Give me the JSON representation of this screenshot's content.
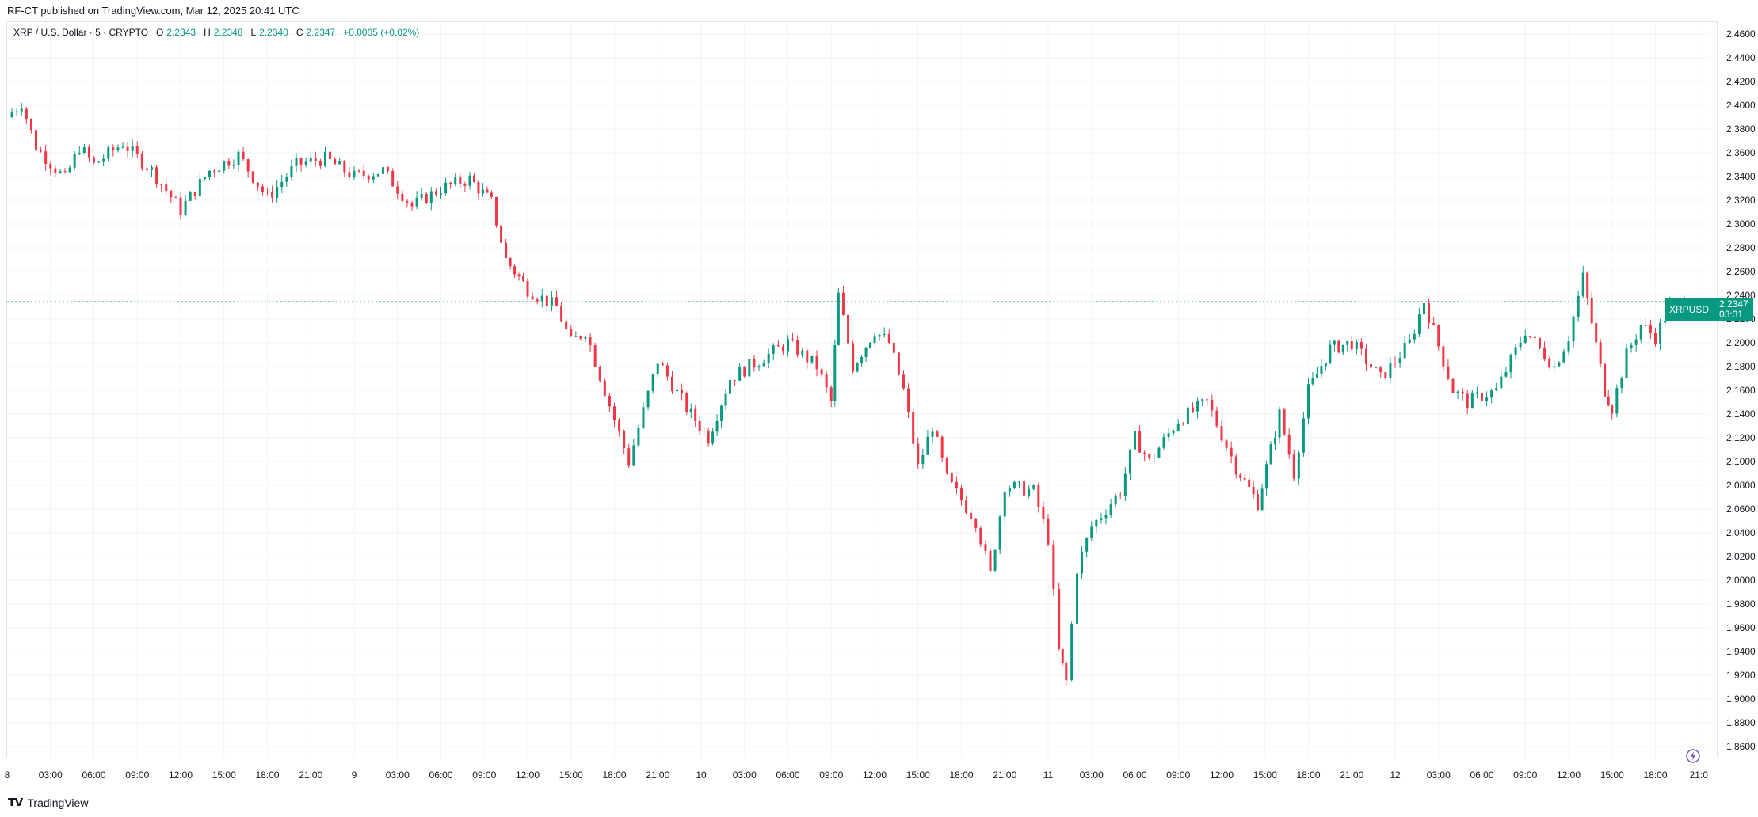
{
  "publisher_line": "RF-CT published on TradingView.com, Mar 12, 2025 20:41 UTC",
  "legend": {
    "symbol": "XRP / U.S. Dollar · 5 · CRYPTO",
    "open_label": "O",
    "open": "2.2343",
    "high_label": "H",
    "high": "2.2348",
    "low_label": "L",
    "low": "2.2340",
    "close_label": "C",
    "close": "2.2347",
    "change": "+0.0005 (+0.02%)"
  },
  "price_badge": {
    "ticker": "XRPUSD",
    "price": "2.2347",
    "countdown": "03:31"
  },
  "footer": {
    "brand": "TradingView"
  },
  "colors": {
    "up": "#089981",
    "down": "#f23645",
    "grid": "#f0f3fa",
    "axis_text": "#131722",
    "last_price_line": "#089981"
  },
  "chart_data": {
    "type": "candlestick",
    "symbol": "XRPUSD",
    "interval": "5",
    "ylim": [
      1.85,
      2.47
    ],
    "y_ticks": [
      "2.4600",
      "2.4400",
      "2.4200",
      "2.4000",
      "2.3800",
      "2.3600",
      "2.3400",
      "2.3200",
      "2.3000",
      "2.2800",
      "2.2600",
      "2.2400",
      "2.2200",
      "2.2000",
      "2.1800",
      "2.1600",
      "2.1400",
      "2.1200",
      "2.1000",
      "2.0800",
      "2.0600",
      "2.0400",
      "2.0200",
      "2.0000",
      "1.9800",
      "1.9600",
      "1.9400",
      "1.9200",
      "1.9000",
      "1.8800",
      "1.8600"
    ],
    "x_ticks": [
      "03:00",
      "06:00",
      "09:00",
      "12:00",
      "15:00",
      "18:00",
      "21:00",
      "9",
      "03:00",
      "06:00",
      "09:00",
      "12:00",
      "15:00",
      "18:00",
      "21:00",
      "10",
      "03:00",
      "06:00",
      "09:00",
      "12:00",
      "15:00",
      "18:00",
      "21:00",
      "11",
      "03:00",
      "06:00",
      "09:00",
      "12:00",
      "15:00",
      "18:00",
      "21:00",
      "12",
      "03:00",
      "06:00",
      "09:00",
      "12:00",
      "15:00",
      "18:00",
      "21:0"
    ],
    "x_edge_label_left": "8",
    "last_price": 2.2347,
    "price_path": [
      {
        "t": "Mar 8 00:00",
        "p": 2.39
      },
      {
        "t": "Mar 8 01:00",
        "p": 2.402
      },
      {
        "t": "Mar 8 02:00",
        "p": 2.365
      },
      {
        "t": "Mar 8 04:00",
        "p": 2.338
      },
      {
        "t": "Mar 8 05:00",
        "p": 2.365
      },
      {
        "t": "Mar 8 06:00",
        "p": 2.35
      },
      {
        "t": "Mar 8 08:00",
        "p": 2.368
      },
      {
        "t": "Mar 8 10:00",
        "p": 2.345
      },
      {
        "t": "Mar 8 12:00",
        "p": 2.312
      },
      {
        "t": "Mar 8 14:00",
        "p": 2.345
      },
      {
        "t": "Mar 8 16:00",
        "p": 2.358
      },
      {
        "t": "Mar 8 18:00",
        "p": 2.322
      },
      {
        "t": "Mar 8 20:00",
        "p": 2.35
      },
      {
        "t": "Mar 8 22:00",
        "p": 2.355
      },
      {
        "t": "Mar 9 00:00",
        "p": 2.34
      },
      {
        "t": "Mar 9 02:00",
        "p": 2.345
      },
      {
        "t": "Mar 9 04:00",
        "p": 2.315
      },
      {
        "t": "Mar 9 06:00",
        "p": 2.33
      },
      {
        "t": "Mar 9 08:00",
        "p": 2.338
      },
      {
        "t": "Mar 9 09:30",
        "p": 2.318
      },
      {
        "t": "Mar 9 10:30",
        "p": 2.27
      },
      {
        "t": "Mar 9 12:00",
        "p": 2.245
      },
      {
        "t": "Mar 9 14:00",
        "p": 2.23
      },
      {
        "t": "Mar 9 15:00",
        "p": 2.2
      },
      {
        "t": "Mar 9 16:00",
        "p": 2.21
      },
      {
        "t": "Mar 9 18:00",
        "p": 2.135
      },
      {
        "t": "Mar 9 19:00",
        "p": 2.1
      },
      {
        "t": "Mar 9 21:00",
        "p": 2.185
      },
      {
        "t": "Mar 9 23:00",
        "p": 2.145
      },
      {
        "t": "Mar 10 00:30",
        "p": 2.12
      },
      {
        "t": "Mar 10 02:00",
        "p": 2.17
      },
      {
        "t": "Mar 10 04:00",
        "p": 2.185
      },
      {
        "t": "Mar 10 06:00",
        "p": 2.2
      },
      {
        "t": "Mar 10 08:00",
        "p": 2.18
      },
      {
        "t": "Mar 10 09:00",
        "p": 2.15
      },
      {
        "t": "Mar 10 09:30",
        "p": 2.24
      },
      {
        "t": "Mar 10 10:30",
        "p": 2.18
      },
      {
        "t": "Mar 10 12:00",
        "p": 2.21
      },
      {
        "t": "Mar 10 13:00",
        "p": 2.2
      },
      {
        "t": "Mar 10 14:00",
        "p": 2.16
      },
      {
        "t": "Mar 10 15:00",
        "p": 2.095
      },
      {
        "t": "Mar 10 16:00",
        "p": 2.13
      },
      {
        "t": "Mar 10 17:00",
        "p": 2.085
      },
      {
        "t": "Mar 10 19:00",
        "p": 2.05
      },
      {
        "t": "Mar 10 20:00",
        "p": 2.005
      },
      {
        "t": "Mar 10 21:00",
        "p": 2.08
      },
      {
        "t": "Mar 10 23:00",
        "p": 2.075
      },
      {
        "t": "Mar 11 00:00",
        "p": 2.035
      },
      {
        "t": "Mar 11 00:45",
        "p": 1.94
      },
      {
        "t": "Mar 11 01:15",
        "p": 1.915
      },
      {
        "t": "Mar 11 02:00",
        "p": 2.01
      },
      {
        "t": "Mar 11 03:00",
        "p": 2.045
      },
      {
        "t": "Mar 11 05:00",
        "p": 2.075
      },
      {
        "t": "Mar 11 06:00",
        "p": 2.12
      },
      {
        "t": "Mar 11 07:00",
        "p": 2.1
      },
      {
        "t": "Mar 11 09:00",
        "p": 2.135
      },
      {
        "t": "Mar 11 11:00",
        "p": 2.15
      },
      {
        "t": "Mar 11 13:00",
        "p": 2.095
      },
      {
        "t": "Mar 11 14:30",
        "p": 2.065
      },
      {
        "t": "Mar 11 16:00",
        "p": 2.14
      },
      {
        "t": "Mar 11 17:00",
        "p": 2.09
      },
      {
        "t": "Mar 11 18:00",
        "p": 2.16
      },
      {
        "t": "Mar 11 19:30",
        "p": 2.195
      },
      {
        "t": "Mar 11 21:00",
        "p": 2.2
      },
      {
        "t": "Mar 11 23:00",
        "p": 2.17
      },
      {
        "t": "Mar 12 01:00",
        "p": 2.2
      },
      {
        "t": "Mar 12 02:00",
        "p": 2.235
      },
      {
        "t": "Mar 12 04:00",
        "p": 2.16
      },
      {
        "t": "Mar 12 05:00",
        "p": 2.15
      },
      {
        "t": "Mar 12 07:00",
        "p": 2.16
      },
      {
        "t": "Mar 12 09:00",
        "p": 2.21
      },
      {
        "t": "Mar 12 11:00",
        "p": 2.18
      },
      {
        "t": "Mar 12 12:00",
        "p": 2.205
      },
      {
        "t": "Mar 12 13:00",
        "p": 2.255
      },
      {
        "t": "Mar 12 14:30",
        "p": 2.16
      },
      {
        "t": "Mar 12 15:00",
        "p": 2.145
      },
      {
        "t": "Mar 12 16:00",
        "p": 2.19
      },
      {
        "t": "Mar 12 17:00",
        "p": 2.215
      },
      {
        "t": "Mar 12 18:00",
        "p": 2.205
      },
      {
        "t": "Mar 12 19:00",
        "p": 2.23
      },
      {
        "t": "Mar 12 20:40",
        "p": 2.2347
      }
    ],
    "notable_levels": {
      "high": 2.407,
      "low": 1.902
    }
  }
}
